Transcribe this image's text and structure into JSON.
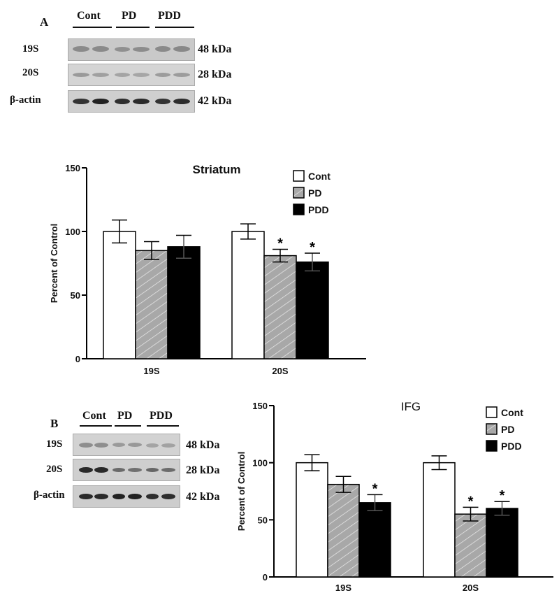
{
  "panel_a": {
    "letter": "A",
    "groups": [
      "Cont",
      "PD",
      "PDD"
    ],
    "rows": [
      {
        "label": "19S",
        "kda": "48 kDa"
      },
      {
        "label": "20S",
        "kda": "28 kDa"
      },
      {
        "label": "β-actin",
        "kda": "42 kDa"
      }
    ]
  },
  "panel_b": {
    "letter": "B",
    "groups": [
      "Cont",
      "PD",
      "PDD"
    ],
    "rows": [
      {
        "label": "19S",
        "kda": "48 kDa"
      },
      {
        "label": "20S",
        "kda": "28 kDa"
      },
      {
        "label": "β-actin",
        "kda": "42 kDa"
      }
    ]
  },
  "colors": {
    "cont": "#ffffff",
    "pd": "#a8a8a8",
    "pdd": "#000000"
  },
  "chart_data": [
    {
      "type": "bar",
      "title": "Striatum",
      "xlabel": "",
      "ylabel": "Percent of Control",
      "ylim": [
        0,
        150
      ],
      "yticks": [
        0,
        50,
        100,
        150
      ],
      "categories": [
        "19S",
        "20S"
      ],
      "legend_position": "top-right",
      "series": [
        {
          "name": "Cont",
          "values": [
            100,
            100
          ],
          "errors": [
            9,
            6
          ],
          "significant": [
            false,
            false
          ]
        },
        {
          "name": "PD",
          "values": [
            85,
            81
          ],
          "errors": [
            7,
            5
          ],
          "significant": [
            false,
            true
          ]
        },
        {
          "name": "PDD",
          "values": [
            88,
            76
          ],
          "errors": [
            9,
            7
          ],
          "significant": [
            false,
            true
          ]
        }
      ]
    },
    {
      "type": "bar",
      "title": "IFG",
      "xlabel": "",
      "ylabel": "Percent of Control",
      "ylim": [
        0,
        150
      ],
      "yticks": [
        0,
        50,
        100,
        150
      ],
      "categories": [
        "19S",
        "20S"
      ],
      "legend_position": "top-right",
      "series": [
        {
          "name": "Cont",
          "values": [
            100,
            100
          ],
          "errors": [
            7,
            6
          ],
          "significant": [
            false,
            false
          ]
        },
        {
          "name": "PD",
          "values": [
            81,
            55
          ],
          "errors": [
            7,
            6
          ],
          "significant": [
            false,
            true
          ]
        },
        {
          "name": "PDD",
          "values": [
            65,
            60
          ],
          "errors": [
            7,
            6
          ],
          "significant": [
            true,
            true
          ]
        }
      ]
    }
  ]
}
